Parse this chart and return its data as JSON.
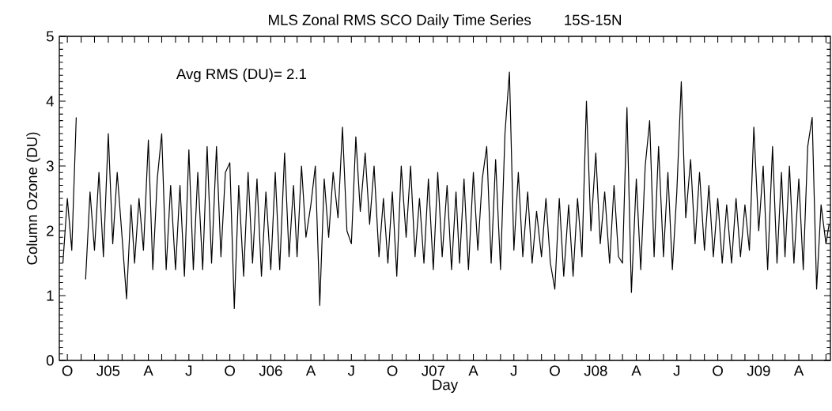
{
  "chart_data": {
    "type": "line",
    "title": "MLS Zonal RMS SCO Daily Time Series",
    "subtitle": "15S-15N",
    "xlabel": "Day",
    "ylabel": "Column Ozone (DU)",
    "annotations": [
      "Avg RMS (DU)= 2.1"
    ],
    "xlim": [
      "2004-09-13",
      "2009-06-11"
    ],
    "ylim": [
      0,
      5
    ],
    "yticks": [
      0,
      1,
      2,
      3,
      4,
      5
    ],
    "xticks": [
      {
        "value": "2004-10-01",
        "label": "O"
      },
      {
        "value": "2004-11-01",
        "label": null
      },
      {
        "value": "2004-12-01",
        "label": null
      },
      {
        "value": "2005-01-01",
        "label": "J05"
      },
      {
        "value": "2005-02-01",
        "label": null
      },
      {
        "value": "2005-03-01",
        "label": null
      },
      {
        "value": "2005-04-01",
        "label": "A"
      },
      {
        "value": "2005-05-01",
        "label": null
      },
      {
        "value": "2005-06-01",
        "label": null
      },
      {
        "value": "2005-07-01",
        "label": "J"
      },
      {
        "value": "2005-08-01",
        "label": null
      },
      {
        "value": "2005-09-01",
        "label": null
      },
      {
        "value": "2005-10-01",
        "label": "O"
      },
      {
        "value": "2005-11-01",
        "label": null
      },
      {
        "value": "2005-12-01",
        "label": null
      },
      {
        "value": "2006-01-01",
        "label": "J06"
      },
      {
        "value": "2006-02-01",
        "label": null
      },
      {
        "value": "2006-03-01",
        "label": null
      },
      {
        "value": "2006-04-01",
        "label": "A"
      },
      {
        "value": "2006-05-01",
        "label": null
      },
      {
        "value": "2006-06-01",
        "label": null
      },
      {
        "value": "2006-07-01",
        "label": "J"
      },
      {
        "value": "2006-08-01",
        "label": null
      },
      {
        "value": "2006-09-01",
        "label": null
      },
      {
        "value": "2006-10-01",
        "label": "O"
      },
      {
        "value": "2006-11-01",
        "label": null
      },
      {
        "value": "2006-12-01",
        "label": null
      },
      {
        "value": "2007-01-01",
        "label": "J07"
      },
      {
        "value": "2007-02-01",
        "label": null
      },
      {
        "value": "2007-03-01",
        "label": null
      },
      {
        "value": "2007-04-01",
        "label": "A"
      },
      {
        "value": "2007-05-01",
        "label": null
      },
      {
        "value": "2007-06-01",
        "label": null
      },
      {
        "value": "2007-07-01",
        "label": "J"
      },
      {
        "value": "2007-08-01",
        "label": null
      },
      {
        "value": "2007-09-01",
        "label": null
      },
      {
        "value": "2007-10-01",
        "label": "O"
      },
      {
        "value": "2007-11-01",
        "label": null
      },
      {
        "value": "2007-12-01",
        "label": null
      },
      {
        "value": "2008-01-01",
        "label": "J08"
      },
      {
        "value": "2008-02-01",
        "label": null
      },
      {
        "value": "2008-03-01",
        "label": null
      },
      {
        "value": "2008-04-01",
        "label": "A"
      },
      {
        "value": "2008-05-01",
        "label": null
      },
      {
        "value": "2008-06-01",
        "label": null
      },
      {
        "value": "2008-07-01",
        "label": "J"
      },
      {
        "value": "2008-08-01",
        "label": null
      },
      {
        "value": "2008-09-01",
        "label": null
      },
      {
        "value": "2008-10-01",
        "label": "O"
      },
      {
        "value": "2008-11-01",
        "label": null
      },
      {
        "value": "2008-12-01",
        "label": null
      },
      {
        "value": "2009-01-01",
        "label": "J09"
      },
      {
        "value": "2009-02-01",
        "label": null
      },
      {
        "value": "2009-03-01",
        "label": null
      },
      {
        "value": "2009-04-01",
        "label": "A"
      },
      {
        "value": "2009-05-01",
        "label": null
      },
      {
        "value": "2009-06-01",
        "label": null
      }
    ],
    "grid": false,
    "series": [
      {
        "color": "#000000",
        "x": [
          "2004-09-21",
          "2004-10-01",
          "2004-10-11",
          "2004-10-21",
          "2004-11-01",
          "2004-11-11",
          "2004-11-21",
          "2004-12-01",
          "2004-12-11",
          "2004-12-21",
          "2005-01-01",
          "2005-01-11",
          "2005-01-21",
          "2005-02-01",
          "2005-02-11",
          "2005-02-21",
          "2005-03-01",
          "2005-03-11",
          "2005-03-21",
          "2005-04-01",
          "2005-04-11",
          "2005-04-21",
          "2005-05-01",
          "2005-05-11",
          "2005-05-21",
          "2005-06-01",
          "2005-06-11",
          "2005-06-21",
          "2005-07-01",
          "2005-07-11",
          "2005-07-21",
          "2005-08-01",
          "2005-08-11",
          "2005-08-21",
          "2005-09-01",
          "2005-09-11",
          "2005-09-21",
          "2005-10-01",
          "2005-10-11",
          "2005-10-21",
          "2005-11-01",
          "2005-11-11",
          "2005-11-21",
          "2005-12-01",
          "2005-12-11",
          "2005-12-21",
          "2006-01-01",
          "2006-01-11",
          "2006-01-21",
          "2006-02-01",
          "2006-02-11",
          "2006-02-21",
          "2006-03-01",
          "2006-03-11",
          "2006-03-21",
          "2006-04-01",
          "2006-04-11",
          "2006-04-21",
          "2006-05-01",
          "2006-05-11",
          "2006-05-21",
          "2006-06-01",
          "2006-06-11",
          "2006-06-21",
          "2006-07-01",
          "2006-07-11",
          "2006-07-21",
          "2006-08-01",
          "2006-08-11",
          "2006-08-21",
          "2006-09-01",
          "2006-09-11",
          "2006-09-21",
          "2006-10-01",
          "2006-10-11",
          "2006-10-21",
          "2006-11-01",
          "2006-11-11",
          "2006-11-21",
          "2006-12-01",
          "2006-12-11",
          "2006-12-21",
          "2007-01-01",
          "2007-01-11",
          "2007-01-21",
          "2007-02-01",
          "2007-02-11",
          "2007-02-21",
          "2007-03-01",
          "2007-03-11",
          "2007-03-21",
          "2007-04-01",
          "2007-04-11",
          "2007-04-21",
          "2007-05-01",
          "2007-05-11",
          "2007-05-21",
          "2007-06-01",
          "2007-06-11",
          "2007-06-21",
          "2007-07-01",
          "2007-07-11",
          "2007-07-21",
          "2007-08-01",
          "2007-08-11",
          "2007-08-21",
          "2007-09-01",
          "2007-09-11",
          "2007-09-21",
          "2007-10-01",
          "2007-10-11",
          "2007-10-21",
          "2007-11-01",
          "2007-11-11",
          "2007-11-21",
          "2007-12-01",
          "2007-12-11",
          "2007-12-21",
          "2008-01-01",
          "2008-01-11",
          "2008-01-21",
          "2008-02-01",
          "2008-02-11",
          "2008-02-21",
          "2008-03-01",
          "2008-03-11",
          "2008-03-21",
          "2008-04-01",
          "2008-04-11",
          "2008-04-21",
          "2008-05-01",
          "2008-05-11",
          "2008-05-21",
          "2008-06-01",
          "2008-06-11",
          "2008-06-21",
          "2008-07-01",
          "2008-07-11",
          "2008-07-21",
          "2008-08-01",
          "2008-08-11",
          "2008-08-21",
          "2008-09-01",
          "2008-09-11",
          "2008-09-21",
          "2008-10-01",
          "2008-10-11",
          "2008-10-21",
          "2008-11-01",
          "2008-11-11",
          "2008-11-21",
          "2008-12-01",
          "2008-12-11",
          "2008-12-21",
          "2009-01-01",
          "2009-01-11",
          "2009-01-21",
          "2009-02-01",
          "2009-02-11",
          "2009-02-21",
          "2009-03-01",
          "2009-03-11",
          "2009-03-21",
          "2009-04-01",
          "2009-04-11",
          "2009-04-21",
          "2009-05-01",
          "2009-05-11",
          "2009-05-21",
          "2009-06-01",
          "2009-06-08"
        ],
        "values": [
          1.5,
          2.5,
          1.7,
          3.75,
          null,
          1.25,
          2.6,
          1.7,
          2.9,
          1.6,
          3.5,
          1.8,
          2.9,
          1.9,
          0.95,
          2.4,
          1.5,
          2.5,
          1.7,
          3.4,
          1.4,
          2.8,
          3.5,
          1.4,
          2.7,
          1.4,
          2.7,
          1.3,
          3.25,
          1.4,
          2.9,
          1.4,
          3.3,
          1.5,
          3.3,
          1.6,
          2.9,
          3.05,
          0.8,
          2.7,
          1.3,
          2.9,
          1.5,
          2.8,
          1.3,
          2.6,
          1.4,
          2.9,
          1.4,
          3.2,
          1.6,
          2.7,
          1.6,
          3.0,
          1.9,
          2.4,
          3.0,
          0.85,
          2.8,
          1.9,
          2.9,
          2.2,
          3.6,
          2.0,
          1.8,
          3.45,
          2.3,
          3.2,
          2.1,
          3.0,
          1.6,
          2.5,
          1.5,
          2.6,
          1.3,
          3.0,
          1.9,
          3.0,
          1.6,
          2.5,
          1.5,
          2.8,
          1.4,
          2.9,
          1.6,
          2.7,
          1.4,
          2.6,
          1.5,
          2.8,
          1.4,
          2.9,
          1.7,
          2.8,
          3.3,
          1.5,
          3.1,
          1.4,
          3.5,
          4.45,
          1.7,
          2.9,
          1.6,
          2.6,
          1.5,
          2.3,
          1.6,
          2.5,
          1.5,
          1.1,
          2.5,
          1.3,
          2.4,
          1.3,
          2.5,
          1.6,
          4.0,
          2.0,
          3.2,
          1.8,
          2.6,
          1.5,
          2.7,
          1.6,
          1.5,
          3.9,
          1.05,
          2.8,
          1.4,
          3.0,
          3.7,
          1.6,
          3.3,
          1.6,
          2.9,
          1.4,
          2.6,
          4.3,
          2.2,
          3.1,
          1.8,
          2.9,
          1.7,
          2.7,
          1.6,
          2.5,
          1.5,
          2.4,
          1.5,
          2.5,
          1.6,
          2.4,
          1.7,
          3.6,
          2.0,
          3.0,
          1.4,
          3.3,
          1.5,
          2.9,
          1.6,
          3.0,
          1.5,
          2.8,
          1.4,
          3.3,
          3.75,
          1.1,
          2.4,
          1.8,
          2.1
        ]
      }
    ]
  }
}
